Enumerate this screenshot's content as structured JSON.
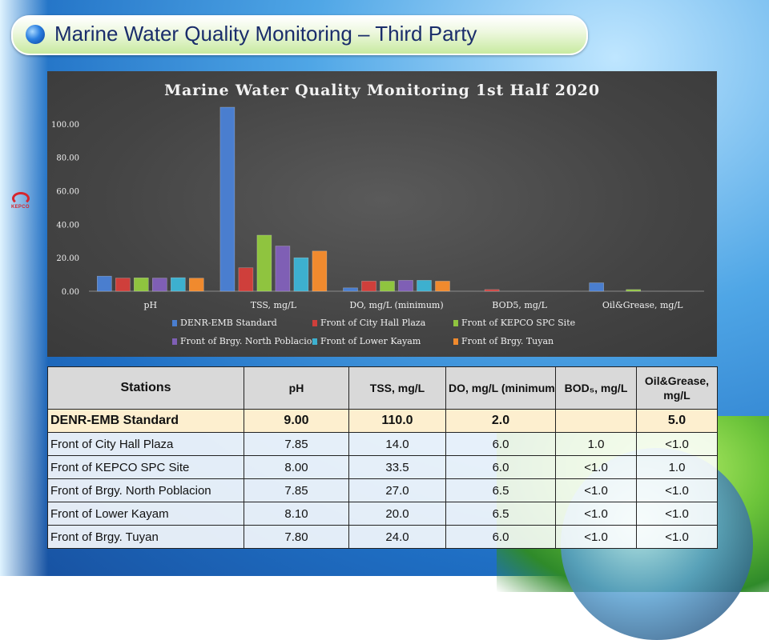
{
  "header": {
    "title": "Marine Water Quality Monitoring – Third Party"
  },
  "logo": {
    "text": "KEPCO"
  },
  "colors": {
    "title_text": "#1a2d6b",
    "series": [
      "#4a7ecf",
      "#cf3f3b",
      "#8fc43f",
      "#7f5fb5",
      "#3db0cf",
      "#f08a2e"
    ]
  },
  "chart_data": {
    "type": "bar",
    "title": "Marine Water Quality Monitoring 1st Half 2020",
    "categories": [
      "pH",
      "TSS, mg/L",
      "DO, mg/L (minimum)",
      "BOD5, mg/L",
      "Oil&Grease, mg/L"
    ],
    "yticks": [
      "0.00",
      "20.00",
      "40.00",
      "60.00",
      "80.00",
      "100.00"
    ],
    "ylim": [
      0,
      110
    ],
    "legend_position": "bottom",
    "series": [
      {
        "name": "DENR-EMB Standard",
        "values": [
          9.0,
          110.0,
          2.0,
          0,
          5.0
        ]
      },
      {
        "name": "Front of City Hall Plaza",
        "values": [
          7.85,
          14.0,
          6.0,
          1.0,
          0
        ]
      },
      {
        "name": "Front of KEPCO SPC Site",
        "values": [
          8.0,
          33.5,
          6.0,
          0,
          1.0
        ]
      },
      {
        "name": "Front of Brgy. North Poblacion",
        "values": [
          7.85,
          27.0,
          6.5,
          0,
          0
        ]
      },
      {
        "name": "Front of Lower Kayam",
        "values": [
          8.1,
          20.0,
          6.5,
          0,
          0
        ]
      },
      {
        "name": "Front of Brgy. Tuyan",
        "values": [
          7.8,
          24.0,
          6.0,
          0,
          0
        ]
      }
    ]
  },
  "table": {
    "headers": [
      "Stations",
      "pH",
      "TSS, mg/L",
      "DO, mg/L (minimum)",
      "BOD₅, mg/L",
      "Oil&Grease, mg/L"
    ],
    "rows": [
      [
        "DENR-EMB Standard",
        "9.00",
        "110.0",
        "2.0",
        "",
        "5.0"
      ],
      [
        "Front of City Hall Plaza",
        "7.85",
        "14.0",
        "6.0",
        "1.0",
        "<1.0"
      ],
      [
        "Front of KEPCO SPC Site",
        "8.00",
        "33.5",
        "6.0",
        "<1.0",
        "1.0"
      ],
      [
        "Front of Brgy. North Poblacion",
        "7.85",
        "27.0",
        "6.5",
        "<1.0",
        "<1.0"
      ],
      [
        "Front of Lower Kayam",
        "8.10",
        "20.0",
        "6.5",
        "<1.0",
        "<1.0"
      ],
      [
        "Front of Brgy. Tuyan",
        "7.80",
        "24.0",
        "6.0",
        "<1.0",
        "<1.0"
      ]
    ]
  }
}
